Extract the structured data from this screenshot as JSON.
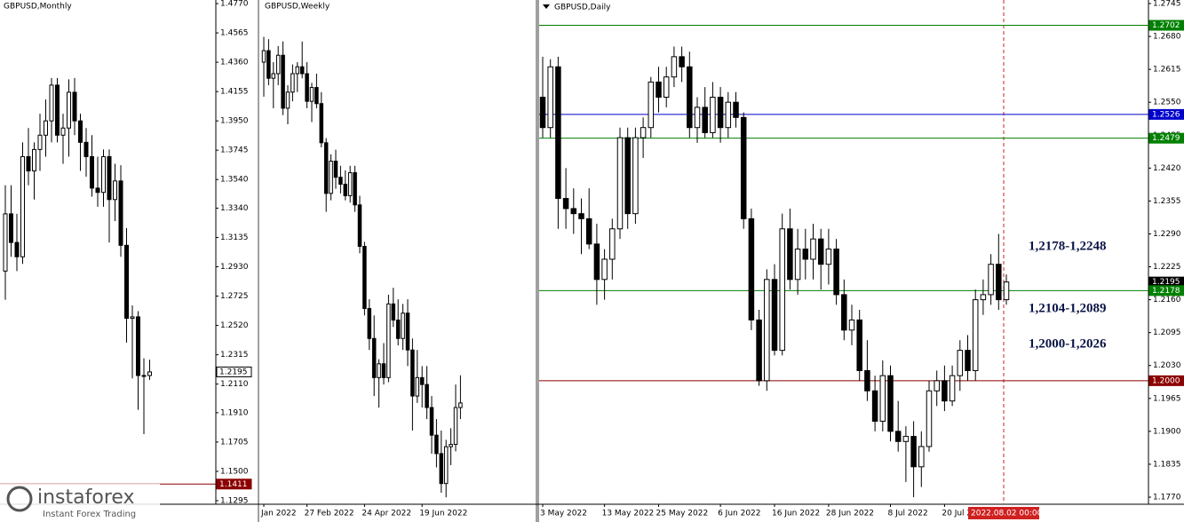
{
  "chart_data": [
    {
      "type": "candlestick",
      "title": "GBPUSD,Monthly",
      "ylim": [
        1.127,
        1.4795
      ],
      "yticks": [
        {
          "value": 1.477,
          "label": "1.4770"
        },
        1.4565,
        {
          "value": 1.436,
          "label": "1.4360"
        },
        1.4155,
        {
          "value": 1.395,
          "label": "1.3950"
        },
        1.3745,
        {
          "value": 1.354,
          "label": "1.3540"
        },
        {
          "value": 1.334,
          "label": "1.3340"
        },
        1.3135,
        {
          "value": 1.293,
          "label": "1.2930"
        },
        1.2725,
        {
          "value": 1.252,
          "label": "1.2520"
        },
        1.2315,
        {
          "value": 1.211,
          "label": "1.2110"
        },
        {
          "value": 1.191,
          "label": "1.1910"
        },
        1.1705,
        {
          "value": 1.15,
          "label": "1.1500"
        },
        1.1295
      ],
      "levels": [
        {
          "value": 1.2195,
          "label": "1.2195",
          "color": "#ffffff",
          "text_color": "#000000",
          "line": false
        },
        {
          "value": 1.1411,
          "label": "1.1411",
          "color": "#8b0000",
          "text_color": "#ffffff",
          "line": true
        }
      ],
      "ohlc": [
        [
          1.29,
          1.35,
          1.27,
          1.33
        ],
        [
          1.33,
          1.35,
          1.3,
          1.31
        ],
        [
          1.31,
          1.33,
          1.29,
          1.3
        ],
        [
          1.3,
          1.38,
          1.295,
          1.37
        ],
        [
          1.37,
          1.39,
          1.35,
          1.36
        ],
        [
          1.36,
          1.38,
          1.34,
          1.375
        ],
        [
          1.375,
          1.4,
          1.36,
          1.385
        ],
        [
          1.385,
          1.41,
          1.37,
          1.395
        ],
        [
          1.395,
          1.425,
          1.38,
          1.42
        ],
        [
          1.42,
          1.425,
          1.38,
          1.385
        ],
        [
          1.385,
          1.4,
          1.365,
          1.39
        ],
        [
          1.39,
          1.424,
          1.37,
          1.415
        ],
        [
          1.415,
          1.425,
          1.385,
          1.395
        ],
        [
          1.395,
          1.4,
          1.36,
          1.38
        ],
        [
          1.38,
          1.39,
          1.356,
          1.37
        ],
        [
          1.37,
          1.385,
          1.342,
          1.348
        ],
        [
          1.348,
          1.37,
          1.335,
          1.345
        ],
        [
          1.345,
          1.375,
          1.335,
          1.37
        ],
        [
          1.37,
          1.375,
          1.31,
          1.34
        ],
        [
          1.34,
          1.365,
          1.325,
          1.353
        ],
        [
          1.353,
          1.364,
          1.3,
          1.308
        ],
        [
          1.308,
          1.32,
          1.24,
          1.257
        ],
        [
          1.257,
          1.266,
          1.215,
          1.258
        ],
        [
          1.258,
          1.262,
          1.193,
          1.217
        ],
        [
          1.217,
          1.229,
          1.176,
          1.217
        ],
        [
          1.217,
          1.228,
          1.214,
          1.2195
        ]
      ]
    },
    {
      "type": "candlestick",
      "title": "GBPUSD,Weekly",
      "ylim": [
        1.173,
        1.392
      ],
      "x_labels": [
        {
          "value": 0,
          "label": "Jan 2022"
        },
        {
          "value": 9,
          "label": "27 Feb 2022"
        },
        {
          "value": 21,
          "label": "24 Apr 2022"
        },
        {
          "value": 33,
          "label": "19 Jun 2022"
        }
      ],
      "ohlc": [
        [
          1.365,
          1.376,
          1.35,
          1.37
        ],
        [
          1.37,
          1.375,
          1.355,
          1.358
        ],
        [
          1.358,
          1.365,
          1.345,
          1.36
        ],
        [
          1.36,
          1.372,
          1.355,
          1.368
        ],
        [
          1.368,
          1.374,
          1.342,
          1.345
        ],
        [
          1.345,
          1.355,
          1.338,
          1.352
        ],
        [
          1.352,
          1.364,
          1.348,
          1.36
        ],
        [
          1.36,
          1.365,
          1.352,
          1.363
        ],
        [
          1.363,
          1.374,
          1.358,
          1.36
        ],
        [
          1.36,
          1.365,
          1.345,
          1.348
        ],
        [
          1.348,
          1.356,
          1.339,
          1.354
        ],
        [
          1.354,
          1.36,
          1.345,
          1.347
        ],
        [
          1.347,
          1.352,
          1.328,
          1.33
        ],
        [
          1.33,
          1.332,
          1.3,
          1.308
        ],
        [
          1.308,
          1.325,
          1.305,
          1.322
        ],
        [
          1.322,
          1.327,
          1.31,
          1.315
        ],
        [
          1.315,
          1.32,
          1.308,
          1.312
        ],
        [
          1.312,
          1.318,
          1.305,
          1.307
        ],
        [
          1.307,
          1.32,
          1.304,
          1.317
        ],
        [
          1.317,
          1.32,
          1.3,
          1.303
        ],
        [
          1.303,
          1.307,
          1.282,
          1.285
        ],
        [
          1.285,
          1.287,
          1.255,
          1.258
        ],
        [
          1.258,
          1.262,
          1.24,
          1.245
        ],
        [
          1.245,
          1.255,
          1.22,
          1.228
        ],
        [
          1.228,
          1.236,
          1.215,
          1.234
        ],
        [
          1.234,
          1.243,
          1.225,
          1.228
        ],
        [
          1.228,
          1.264,
          1.226,
          1.26
        ],
        [
          1.26,
          1.267,
          1.25,
          1.253
        ],
        [
          1.253,
          1.262,
          1.242,
          1.245
        ],
        [
          1.245,
          1.26,
          1.24,
          1.256
        ],
        [
          1.256,
          1.262,
          1.233,
          1.24
        ],
        [
          1.24,
          1.245,
          1.205,
          1.22
        ],
        [
          1.22,
          1.24,
          1.217,
          1.228
        ],
        [
          1.228,
          1.233,
          1.215,
          1.225
        ],
        [
          1.225,
          1.233,
          1.21,
          1.215
        ],
        [
          1.215,
          1.22,
          1.195,
          1.203
        ],
        [
          1.203,
          1.21,
          1.189,
          1.195
        ],
        [
          1.195,
          1.205,
          1.178,
          1.182
        ],
        [
          1.182,
          1.201,
          1.176,
          1.198
        ],
        [
          1.198,
          1.206,
          1.19,
          1.199
        ],
        [
          1.199,
          1.225,
          1.196,
          1.215
        ],
        [
          1.215,
          1.229,
          1.21,
          1.217
        ]
      ]
    },
    {
      "type": "candlestick",
      "title": "GBPUSD,Daily",
      "ylim": [
        1.1756,
        1.2752
      ],
      "yticks": [
        1.2745,
        {
          "value": 1.268,
          "label": "1.2680"
        },
        1.2615,
        {
          "value": 1.255,
          "label": "1.2550"
        },
        1.2485,
        {
          "value": 1.242,
          "label": "1.2420"
        },
        1.2355,
        {
          "value": 1.229,
          "label": "1.2290"
        },
        1.2225,
        {
          "value": 1.216,
          "label": "1.2160"
        },
        1.2095,
        {
          "value": 1.203,
          "label": "1.2030"
        },
        1.1965,
        {
          "value": 1.19,
          "label": "1.1900"
        },
        1.1835,
        {
          "value": 1.177,
          "label": "1.1770"
        }
      ],
      "x_labels": [
        {
          "value": 0,
          "label": "3 May 2022"
        },
        {
          "value": 8,
          "label": "13 May 2022"
        },
        {
          "value": 15,
          "label": "25 May 2022"
        },
        {
          "value": 23,
          "label": "6 Jun 2022"
        },
        {
          "value": 30,
          "label": "16 Jun 2022"
        },
        {
          "value": 37,
          "label": "28 Jun 2022"
        },
        {
          "value": 45,
          "label": "8 Jul 2022"
        },
        {
          "value": 52,
          "label": "20 Jul 2"
        }
      ],
      "cursor_label": "2022.08.02 00:00",
      "levels": [
        {
          "value": 1.2702,
          "label": "1.2702",
          "color": "#008000",
          "text_color": "#ffffff",
          "line": true
        },
        {
          "value": 1.2526,
          "label": "1.2526",
          "color": "#0000cd",
          "text_color": "#ffffff",
          "line": true
        },
        {
          "value": 1.2479,
          "label": "1.2479",
          "color": "#008000",
          "text_color": "#ffffff",
          "line": true
        },
        {
          "value": 1.2195,
          "label": "1.2195",
          "color": "#000000",
          "text_color": "#ffffff",
          "line": false
        },
        {
          "value": 1.2178,
          "label": "1.2178",
          "color": "#008000",
          "text_color": "#ffffff",
          "line": true
        },
        {
          "value": 1.2,
          "label": "1.2000",
          "color": "#8b0000",
          "text_color": "#ffffff",
          "line": true
        }
      ],
      "annotations": [
        "1,2178-1,2248",
        "1,2104-1,2089",
        "1,2000-1,2026"
      ],
      "ohlc": [
        [
          1.256,
          1.264,
          1.248,
          1.25
        ],
        [
          1.25,
          1.2635,
          1.248,
          1.262
        ],
        [
          1.262,
          1.264,
          1.23,
          1.236
        ],
        [
          1.236,
          1.242,
          1.23,
          1.234
        ],
        [
          1.234,
          1.238,
          1.229,
          1.233
        ],
        [
          1.233,
          1.236,
          1.225,
          1.232
        ],
        [
          1.232,
          1.238,
          1.226,
          1.227
        ],
        [
          1.227,
          1.231,
          1.215,
          1.22
        ],
        [
          1.22,
          1.226,
          1.216,
          1.224
        ],
        [
          1.224,
          1.232,
          1.22,
          1.23
        ],
        [
          1.23,
          1.25,
          1.228,
          1.248
        ],
        [
          1.248,
          1.25,
          1.23,
          1.233
        ],
        [
          1.233,
          1.25,
          1.231,
          1.248
        ],
        [
          1.248,
          1.252,
          1.244,
          1.25
        ],
        [
          1.25,
          1.26,
          1.248,
          1.259
        ],
        [
          1.259,
          1.262,
          1.253,
          1.256
        ],
        [
          1.256,
          1.262,
          1.254,
          1.26
        ],
        [
          1.26,
          1.266,
          1.258,
          1.264
        ],
        [
          1.264,
          1.266,
          1.259,
          1.262
        ],
        [
          1.262,
          1.265,
          1.248,
          1.25
        ],
        [
          1.25,
          1.256,
          1.247,
          1.254
        ],
        [
          1.254,
          1.258,
          1.248,
          1.249
        ],
        [
          1.249,
          1.259,
          1.248,
          1.256
        ],
        [
          1.256,
          1.258,
          1.247,
          1.25
        ],
        [
          1.25,
          1.257,
          1.248,
          1.255
        ],
        [
          1.255,
          1.257,
          1.25,
          1.252
        ],
        [
          1.252,
          1.253,
          1.23,
          1.232
        ],
        [
          1.232,
          1.234,
          1.21,
          1.212
        ],
        [
          1.212,
          1.214,
          1.199,
          1.2
        ],
        [
          1.2,
          1.222,
          1.198,
          1.22
        ],
        [
          1.22,
          1.223,
          1.205,
          1.206
        ],
        [
          1.206,
          1.233,
          1.205,
          1.23
        ],
        [
          1.23,
          1.234,
          1.218,
          1.22
        ],
        [
          1.22,
          1.23,
          1.217,
          1.226
        ],
        [
          1.226,
          1.23,
          1.22,
          1.224
        ],
        [
          1.224,
          1.231,
          1.22,
          1.228
        ],
        [
          1.228,
          1.23,
          1.218,
          1.223
        ],
        [
          1.223,
          1.23,
          1.219,
          1.226
        ],
        [
          1.226,
          1.228,
          1.215,
          1.217
        ],
        [
          1.217,
          1.22,
          1.208,
          1.21
        ],
        [
          1.21,
          1.215,
          1.207,
          1.212
        ],
        [
          1.212,
          1.214,
          1.2,
          1.202
        ],
        [
          1.202,
          1.208,
          1.196,
          1.198
        ],
        [
          1.198,
          1.201,
          1.19,
          1.192
        ],
        [
          1.192,
          1.204,
          1.19,
          1.201
        ],
        [
          1.201,
          1.203,
          1.188,
          1.19
        ],
        [
          1.19,
          1.196,
          1.186,
          1.188
        ],
        [
          1.188,
          1.191,
          1.18,
          1.189
        ],
        [
          1.189,
          1.192,
          1.177,
          1.183
        ],
        [
          1.183,
          1.19,
          1.179,
          1.187
        ],
        [
          1.187,
          1.2,
          1.186,
          1.198
        ],
        [
          1.198,
          1.202,
          1.195,
          1.2
        ],
        [
          1.2,
          1.203,
          1.194,
          1.196
        ],
        [
          1.196,
          1.203,
          1.195,
          1.201
        ],
        [
          1.201,
          1.208,
          1.198,
          1.206
        ],
        [
          1.206,
          1.209,
          1.2,
          1.202
        ],
        [
          1.202,
          1.218,
          1.2,
          1.216
        ],
        [
          1.216,
          1.22,
          1.213,
          1.217
        ],
        [
          1.217,
          1.225,
          1.215,
          1.223
        ],
        [
          1.223,
          1.229,
          1.214,
          1.216
        ],
        [
          1.216,
          1.221,
          1.215,
          1.2195
        ]
      ]
    }
  ],
  "brand": {
    "name": "instaforex",
    "tagline": "Instant Forex Trading"
  }
}
